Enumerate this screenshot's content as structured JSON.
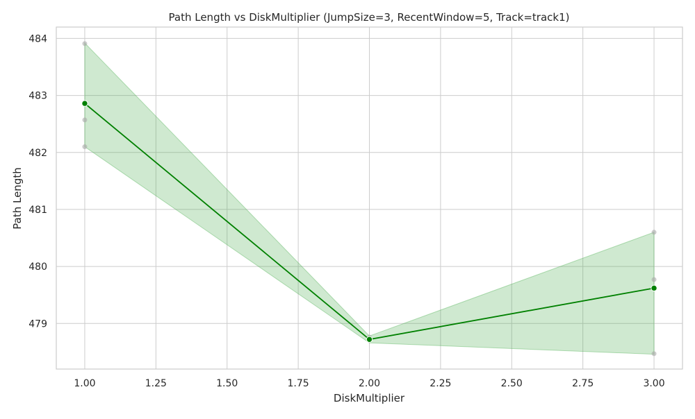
{
  "chart_data": {
    "type": "line",
    "title": "Path Length vs DiskMultiplier (JumpSize=3, RecentWindow=5, Track=track1)",
    "xlabel": "DiskMultiplier",
    "ylabel": "Path Length",
    "xlim": [
      0.9,
      3.1
    ],
    "ylim": [
      478.2,
      484.2
    ],
    "x_ticks": [
      1.0,
      1.25,
      1.5,
      1.75,
      2.0,
      2.25,
      2.5,
      2.75,
      3.0
    ],
    "x_tick_labels": [
      "1.00",
      "1.25",
      "1.50",
      "1.75",
      "2.00",
      "2.25",
      "2.50",
      "2.75",
      "3.00"
    ],
    "y_ticks": [
      479,
      480,
      481,
      482,
      483,
      484
    ],
    "y_tick_labels": [
      "479",
      "480",
      "481",
      "482",
      "483",
      "484"
    ],
    "grid": true,
    "colors": {
      "line": "#008000",
      "band": "#4caf50",
      "raw_points": "#a9a9a9",
      "grid": "#cccccc",
      "spine": "#cccccc"
    },
    "series": [
      {
        "x": [
          1.0,
          2.0,
          3.0
        ],
        "values": [
          482.86,
          478.72,
          479.62
        ],
        "band_upper": [
          483.92,
          478.78,
          480.6
        ],
        "band_lower": [
          482.1,
          478.66,
          478.46
        ]
      }
    ],
    "raw_points": [
      {
        "x": 1.0,
        "y": 483.91
      },
      {
        "x": 1.0,
        "y": 482.57
      },
      {
        "x": 1.0,
        "y": 482.1
      },
      {
        "x": 2.0,
        "y": 478.76
      },
      {
        "x": 2.0,
        "y": 478.7
      },
      {
        "x": 3.0,
        "y": 480.6
      },
      {
        "x": 3.0,
        "y": 479.77
      },
      {
        "x": 3.0,
        "y": 478.47
      }
    ]
  }
}
